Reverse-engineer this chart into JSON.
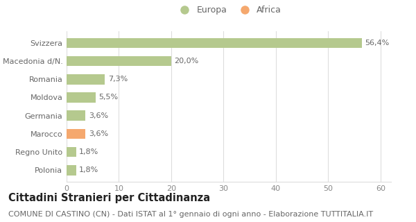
{
  "categories": [
    "Polonia",
    "Regno Unito",
    "Marocco",
    "Germania",
    "Moldova",
    "Romania",
    "Macedonia d/N.",
    "Svizzera"
  ],
  "values": [
    1.8,
    1.8,
    3.6,
    3.6,
    5.5,
    7.3,
    20.0,
    56.4
  ],
  "labels": [
    "1,8%",
    "1,8%",
    "3,6%",
    "3,6%",
    "5,5%",
    "7,3%",
    "20,0%",
    "56,4%"
  ],
  "colors": [
    "#b5c98e",
    "#b5c98e",
    "#f5a86e",
    "#b5c98e",
    "#b5c98e",
    "#b5c98e",
    "#b5c98e",
    "#b5c98e"
  ],
  "xlim": [
    0,
    62
  ],
  "xticks": [
    0,
    10,
    20,
    30,
    40,
    50,
    60
  ],
  "legend_europa_color": "#b5c98e",
  "legend_africa_color": "#f5a86e",
  "title": "Cittadini Stranieri per Cittadinanza",
  "subtitle": "COMUNE DI CASTINO (CN) - Dati ISTAT al 1° gennaio di ogni anno - Elaborazione TUTTITALIA.IT",
  "background_color": "#ffffff",
  "bar_height": 0.55,
  "title_fontsize": 10.5,
  "subtitle_fontsize": 8,
  "label_fontsize": 8,
  "tick_fontsize": 8,
  "grid_color": "#dddddd"
}
